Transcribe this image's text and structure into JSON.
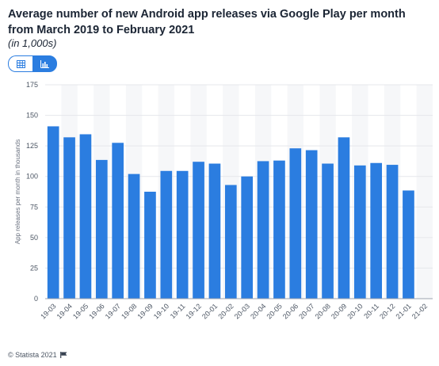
{
  "header": {
    "title": "Average number of new Android app releases via Google Play per month from March 2019 to February 2021",
    "subtitle": "(in 1,000s)"
  },
  "toggle": {
    "table_icon": "table-icon",
    "chart_icon": "bar-chart-icon",
    "accent": "#2b7de0"
  },
  "footer": {
    "credit": "© Statista 2021",
    "flag_icon": "flag-icon"
  },
  "chart_data": {
    "type": "bar",
    "categories": [
      "19-03",
      "19-04",
      "19-05",
      "19-06",
      "19-07",
      "19-08",
      "19-09",
      "19-10",
      "19-11",
      "19-12",
      "20-01",
      "20-02",
      "20-03",
      "20-04",
      "20-05",
      "20-06",
      "20-07",
      "20-08",
      "20-09",
      "20-10",
      "20-11",
      "20-12",
      "21-01",
      "21-02"
    ],
    "values": [
      141,
      132,
      134.5,
      113.5,
      127.5,
      102,
      87.5,
      104.5,
      104.5,
      112,
      110.5,
      93,
      100,
      112.5,
      113,
      123,
      121.5,
      110.5,
      132,
      109,
      111,
      109.5,
      88.5,
      0
    ],
    "ylabel": "App releases per month in thousands",
    "yticks": [
      0,
      25,
      50,
      75,
      100,
      125,
      150,
      175
    ],
    "ylim": [
      0,
      175
    ],
    "bar_color": "#2b7de0",
    "grid": true
  }
}
